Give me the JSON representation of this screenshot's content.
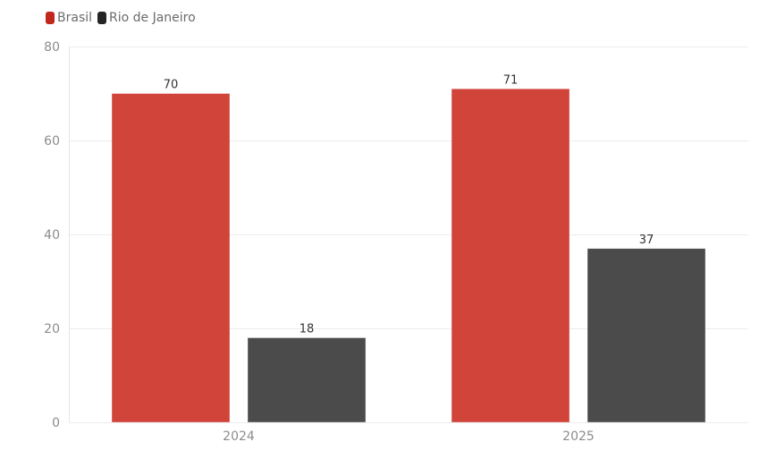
{
  "chart_data": {
    "type": "bar",
    "categories": [
      "2024",
      "2025"
    ],
    "series": [
      {
        "name": "Brasil",
        "values": [
          70,
          71
        ],
        "color": "#d0443a"
      },
      {
        "name": "Rio de Janeiro",
        "values": [
          18,
          37
        ],
        "color": "#4b4b4b"
      }
    ],
    "ylim": [
      0,
      80
    ],
    "yticks": [
      0,
      20,
      40,
      60,
      80
    ],
    "grid": true,
    "legend_position": "top-left",
    "legend_swatch_colors": [
      "#c1271c",
      "#252525"
    ],
    "data_labels": true,
    "xlabel": "",
    "ylabel": ""
  }
}
